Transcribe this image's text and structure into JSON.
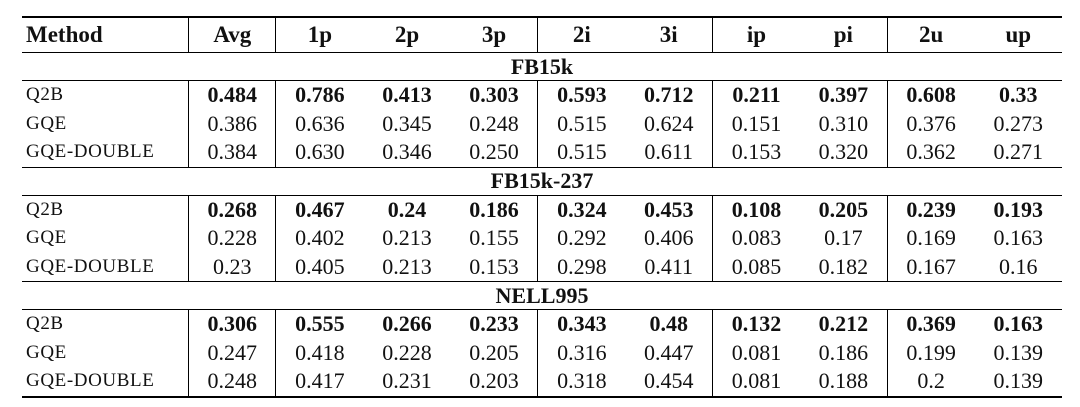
{
  "columns": [
    "Method",
    "Avg",
    "1p",
    "2p",
    "3p",
    "2i",
    "3i",
    "ip",
    "pi",
    "2u",
    "up"
  ],
  "groups": [
    {
      "dataset": "FB15k",
      "rows": [
        {
          "method": "Q2B",
          "values": [
            "0.484",
            "0.786",
            "0.413",
            "0.303",
            "0.593",
            "0.712",
            "0.211",
            "0.397",
            "0.608",
            "0.33"
          ],
          "bold": true
        },
        {
          "method": "GQE",
          "values": [
            "0.386",
            "0.636",
            "0.345",
            "0.248",
            "0.515",
            "0.624",
            "0.151",
            "0.310",
            "0.376",
            "0.273"
          ],
          "bold": false
        },
        {
          "method": "GQE-DOUBLE",
          "values": [
            "0.384",
            "0.630",
            "0.346",
            "0.250",
            "0.515",
            "0.611",
            "0.153",
            "0.320",
            "0.362",
            "0.271"
          ],
          "bold": false
        }
      ]
    },
    {
      "dataset": "FB15k-237",
      "rows": [
        {
          "method": "Q2B",
          "values": [
            "0.268",
            "0.467",
            "0.24",
            "0.186",
            "0.324",
            "0.453",
            "0.108",
            "0.205",
            "0.239",
            "0.193"
          ],
          "bold": true
        },
        {
          "method": "GQE",
          "values": [
            "0.228",
            "0.402",
            "0.213",
            "0.155",
            "0.292",
            "0.406",
            "0.083",
            "0.17",
            "0.169",
            "0.163"
          ],
          "bold": false
        },
        {
          "method": "GQE-DOUBLE",
          "values": [
            "0.23",
            "0.405",
            "0.213",
            "0.153",
            "0.298",
            "0.411",
            "0.085",
            "0.182",
            "0.167",
            "0.16"
          ],
          "bold": false
        }
      ]
    },
    {
      "dataset": "NELL995",
      "rows": [
        {
          "method": "Q2B",
          "values": [
            "0.306",
            "0.555",
            "0.266",
            "0.233",
            "0.343",
            "0.48",
            "0.132",
            "0.212",
            "0.369",
            "0.163"
          ],
          "bold": true
        },
        {
          "method": "GQE",
          "values": [
            "0.247",
            "0.418",
            "0.228",
            "0.205",
            "0.316",
            "0.447",
            "0.081",
            "0.186",
            "0.199",
            "0.139"
          ],
          "bold": false
        },
        {
          "method": "GQE-DOUBLE",
          "values": [
            "0.248",
            "0.417",
            "0.231",
            "0.203",
            "0.318",
            "0.454",
            "0.081",
            "0.188",
            "0.2",
            "0.139"
          ],
          "bold": false
        }
      ]
    }
  ]
}
